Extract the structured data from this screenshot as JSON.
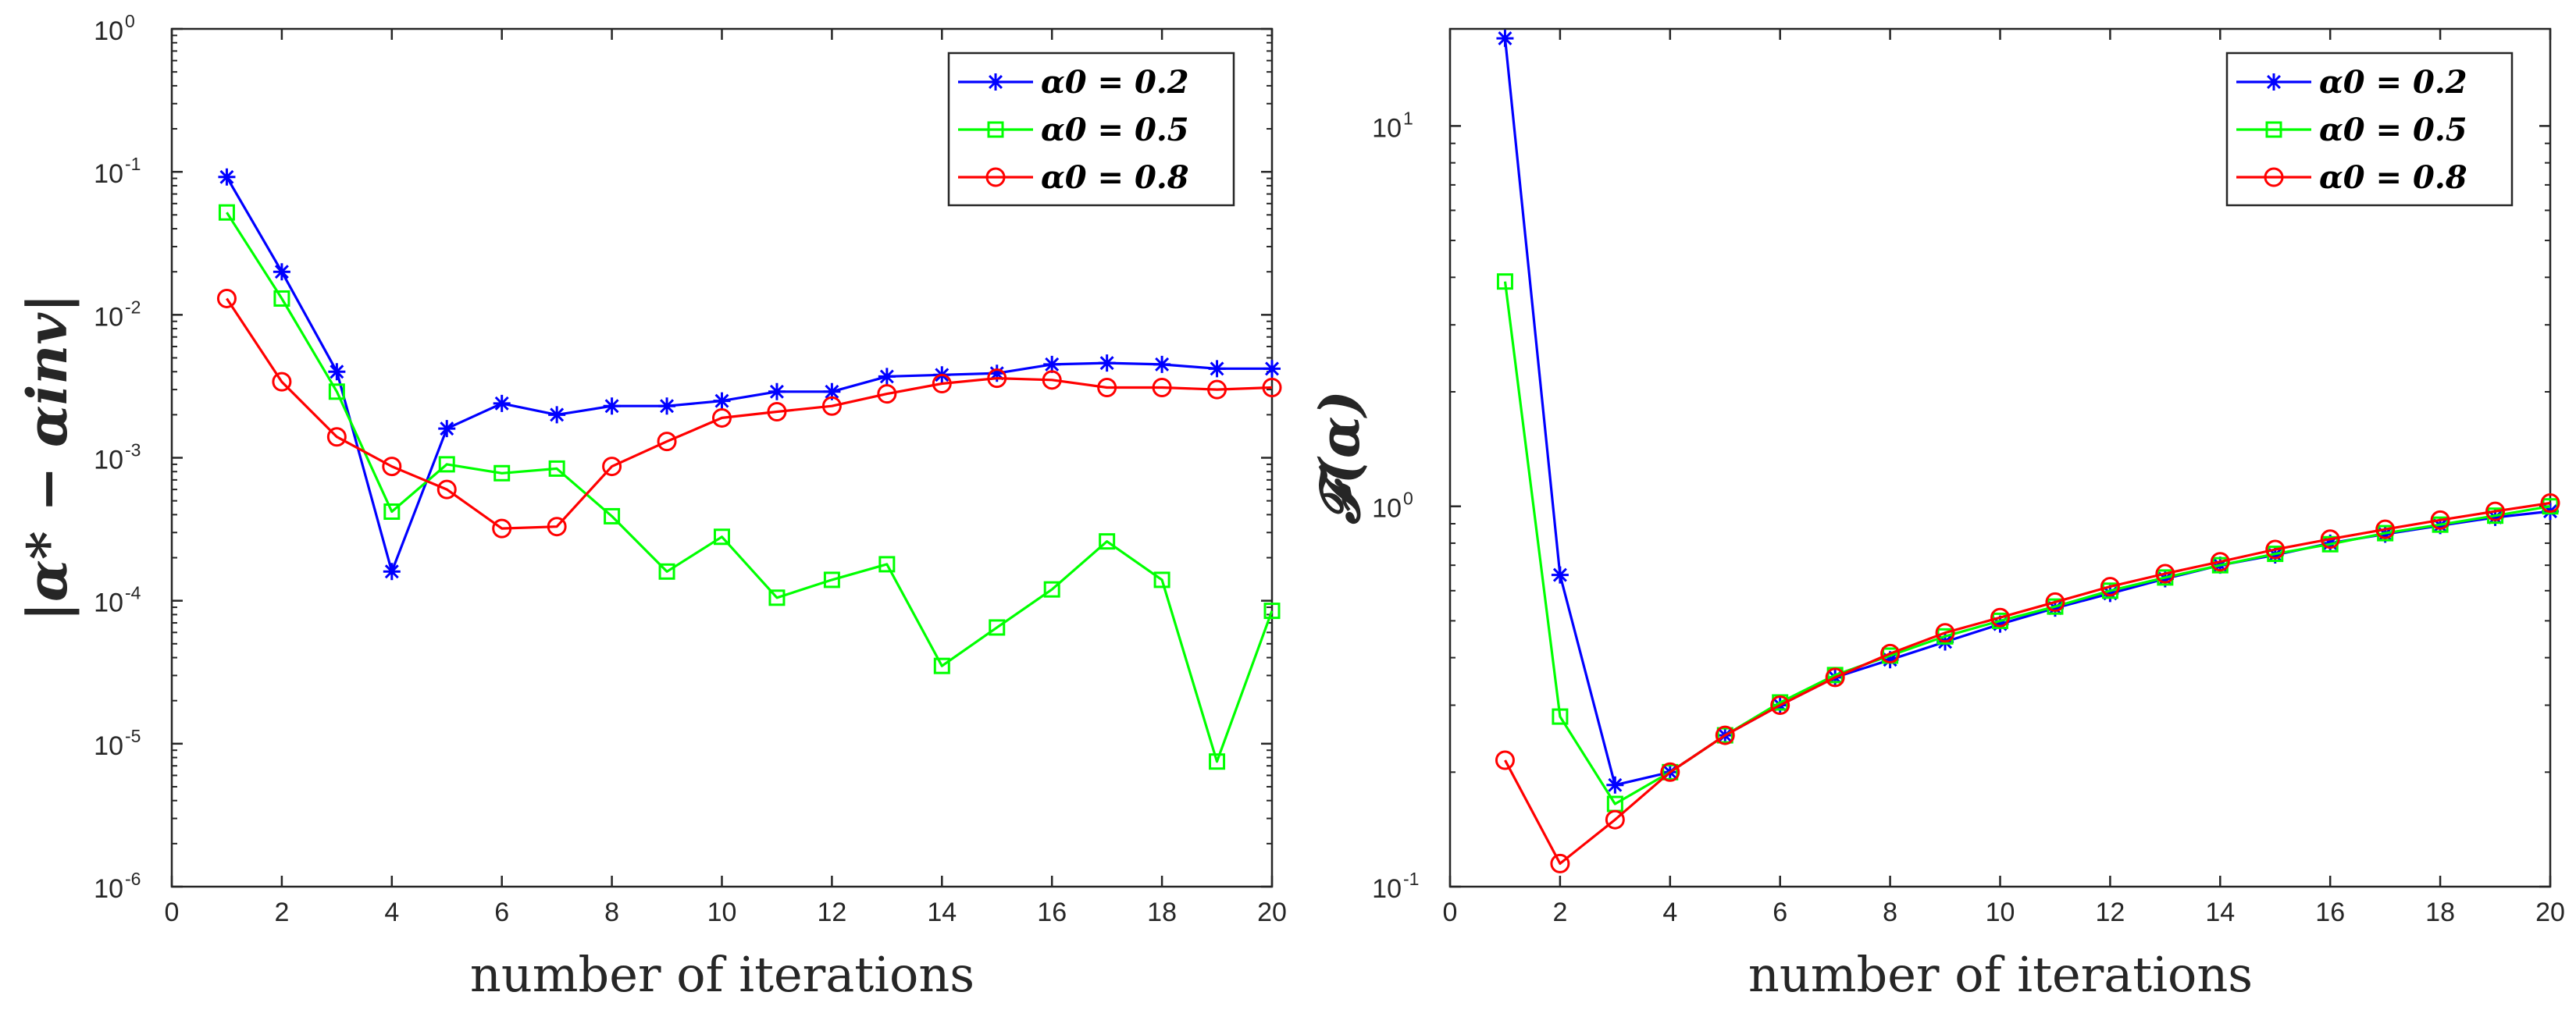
{
  "chart_data": [
    {
      "type": "line",
      "yscale": "log",
      "ylabel": "|α* − αinv|",
      "xlabel": "number of iterations",
      "xlim": [
        0,
        20
      ],
      "ylim": [
        1e-06,
        1
      ],
      "xticks": [
        "0",
        "2",
        "4",
        "6",
        "8",
        "10",
        "12",
        "14",
        "16",
        "18",
        "20"
      ],
      "yticks": [
        {
          "base": "10",
          "exp": "-6"
        },
        {
          "base": "10",
          "exp": "-5"
        },
        {
          "base": "10",
          "exp": "-4"
        },
        {
          "base": "10",
          "exp": "-3"
        },
        {
          "base": "10",
          "exp": "-2"
        },
        {
          "base": "10",
          "exp": "-1"
        },
        {
          "base": "10",
          "exp": "0"
        }
      ],
      "legend_position": "top-right",
      "x": [
        1,
        2,
        3,
        4,
        5,
        6,
        7,
        8,
        9,
        10,
        11,
        12,
        13,
        14,
        15,
        16,
        17,
        18,
        19,
        20
      ],
      "series": [
        {
          "name": "α0 = 0.2",
          "color": "#0000ff",
          "marker": "asterisk",
          "values": [
            0.092,
            0.02,
            0.004,
            0.00016,
            0.0016,
            0.0024,
            0.002,
            0.0023,
            0.0023,
            0.0025,
            0.0029,
            0.0029,
            0.0037,
            0.0038,
            0.0039,
            0.0045,
            0.0046,
            0.0045,
            0.0042,
            0.0042
          ]
        },
        {
          "name": "α0 = 0.5",
          "color": "#00ff00",
          "marker": "square",
          "values": [
            0.052,
            0.013,
            0.0029,
            0.00042,
            0.0009,
            0.00078,
            0.00084,
            0.00039,
            0.00016,
            0.00028,
            0.000105,
            0.00014,
            0.00018,
            3.5e-05,
            6.5e-05,
            0.00012,
            0.00026,
            0.00014,
            7.5e-06,
            8.5e-05
          ]
        },
        {
          "name": "α0 = 0.8",
          "color": "#ff0000",
          "marker": "circle",
          "values": [
            0.013,
            0.0034,
            0.0014,
            0.00087,
            0.0006,
            0.00032,
            0.00033,
            0.00087,
            0.0013,
            0.0019,
            0.0021,
            0.0023,
            0.0028,
            0.0033,
            0.0036,
            0.0035,
            0.0031,
            0.0031,
            0.003,
            0.0031
          ]
        }
      ]
    },
    {
      "type": "line",
      "yscale": "log",
      "ylabel": "𝓕(α)",
      "xlabel": "number of iterations",
      "xlim": [
        0,
        20
      ],
      "ylim": [
        0.1,
        18
      ],
      "xticks": [
        "0",
        "2",
        "4",
        "6",
        "8",
        "10",
        "12",
        "14",
        "16",
        "18",
        "20"
      ],
      "yticks": [
        {
          "base": "10",
          "exp": "-1"
        },
        {
          "base": "10",
          "exp": "0"
        },
        {
          "base": "10",
          "exp": "1"
        }
      ],
      "legend_position": "top-right",
      "x": [
        1,
        2,
        3,
        4,
        5,
        6,
        7,
        8,
        9,
        10,
        11,
        12,
        13,
        14,
        15,
        16,
        17,
        18,
        19,
        20
      ],
      "series": [
        {
          "name": "α0 = 0.2",
          "color": "#0000ff",
          "marker": "asterisk",
          "values": [
            17.0,
            0.66,
            0.185,
            0.2,
            0.25,
            0.3,
            0.355,
            0.395,
            0.44,
            0.49,
            0.54,
            0.59,
            0.645,
            0.7,
            0.745,
            0.8,
            0.845,
            0.89,
            0.935,
            0.97
          ]
        },
        {
          "name": "α0 = 0.5",
          "color": "#00ff00",
          "marker": "square",
          "values": [
            3.9,
            0.28,
            0.165,
            0.2,
            0.25,
            0.305,
            0.36,
            0.405,
            0.455,
            0.5,
            0.545,
            0.6,
            0.65,
            0.7,
            0.75,
            0.795,
            0.85,
            0.895,
            0.945,
            1.0
          ]
        },
        {
          "name": "α0 = 0.8",
          "color": "#ff0000",
          "marker": "circle",
          "values": [
            0.215,
            0.115,
            0.15,
            0.2,
            0.25,
            0.3,
            0.355,
            0.41,
            0.465,
            0.51,
            0.56,
            0.615,
            0.665,
            0.715,
            0.77,
            0.82,
            0.87,
            0.92,
            0.97,
            1.02
          ]
        }
      ]
    }
  ]
}
